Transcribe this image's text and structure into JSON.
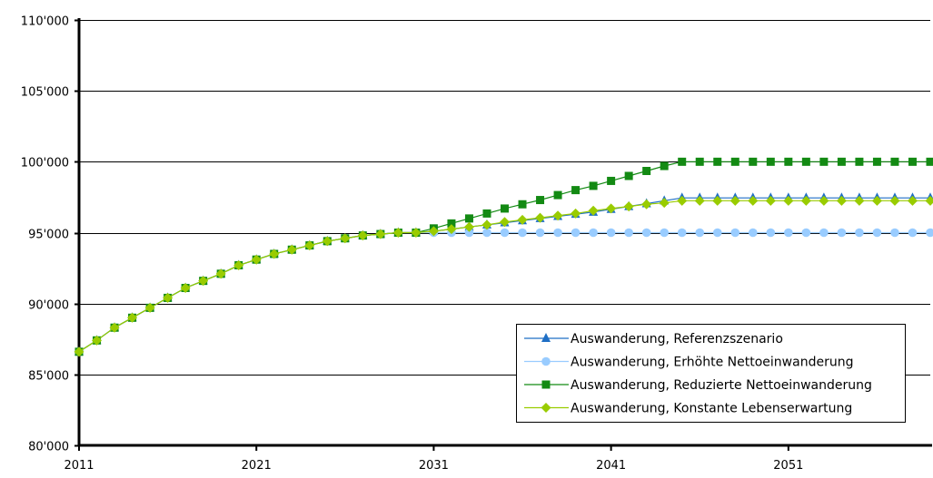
{
  "chart_data": {
    "type": "line",
    "title": "",
    "xlabel": "",
    "ylabel": "",
    "xlim": [
      2011,
      2059
    ],
    "ylim": [
      80000,
      110000
    ],
    "x_ticks": [
      2011,
      2021,
      2031,
      2041,
      2051
    ],
    "x_tick_labels": [
      "2011",
      "2021",
      "2031",
      "2041",
      "2051"
    ],
    "y_ticks": [
      80000,
      85000,
      90000,
      95000,
      100000,
      105000,
      110000
    ],
    "y_tick_labels": [
      "80'000",
      "85'000",
      "90'000",
      "95'000",
      "100'000",
      "105'000",
      "110'000"
    ],
    "grid": "horizontal",
    "legend_position": "bottom-right",
    "x": [
      2011,
      2012,
      2013,
      2014,
      2015,
      2016,
      2017,
      2018,
      2019,
      2020,
      2021,
      2022,
      2023,
      2024,
      2025,
      2026,
      2027,
      2028,
      2029,
      2030,
      2031,
      2032,
      2033,
      2034,
      2035,
      2036,
      2037,
      2038,
      2039,
      2040,
      2041,
      2042,
      2043,
      2044,
      2045,
      2046,
      2047,
      2048,
      2049,
      2050,
      2051,
      2052,
      2053,
      2054,
      2055,
      2056,
      2057,
      2058,
      2059
    ],
    "series": [
      {
        "name": "Auswanderung, Referenzszenario",
        "color": "#1F6FC5",
        "marker": "triangle",
        "values": [
          86600,
          87400,
          88300,
          89000,
          89700,
          90400,
          91100,
          91600,
          92100,
          92700,
          93100,
          93500,
          93800,
          94100,
          94400,
          94600,
          94800,
          94900,
          95000,
          95000,
          95100,
          95250,
          95400,
          95550,
          95700,
          95850,
          96000,
          96150,
          96300,
          96450,
          96650,
          96850,
          97050,
          97250,
          97450,
          97450,
          97450,
          97450,
          97450,
          97450,
          97450,
          97450,
          97450,
          97450,
          97450,
          97450,
          97450,
          97450,
          97450
        ]
      },
      {
        "name": "Auswanderung, Erhöhte Nettoeinwanderung",
        "color": "#99CCFF",
        "marker": "circle",
        "values": [
          86600,
          87400,
          88300,
          89000,
          89700,
          90400,
          91100,
          91600,
          92100,
          92700,
          93100,
          93500,
          93800,
          94100,
          94400,
          94600,
          94800,
          94900,
          95000,
          95000,
          95000,
          95000,
          95000,
          95000,
          95000,
          95000,
          95000,
          95000,
          95000,
          95000,
          95000,
          95000,
          95000,
          95000,
          95000,
          95000,
          95000,
          95000,
          95000,
          95000,
          95000,
          95000,
          95000,
          95000,
          95000,
          95000,
          95000,
          95000,
          95000
        ]
      },
      {
        "name": "Auswanderung, Reduzierte Nettoeinwanderung",
        "color": "#138A13",
        "marker": "square",
        "values": [
          86600,
          87400,
          88300,
          89000,
          89700,
          90400,
          91100,
          91600,
          92100,
          92700,
          93100,
          93500,
          93800,
          94100,
          94400,
          94600,
          94800,
          94900,
          95000,
          95000,
          95300,
          95650,
          96000,
          96350,
          96700,
          97000,
          97300,
          97650,
          98000,
          98300,
          98650,
          99000,
          99350,
          99700,
          100000,
          100000,
          100000,
          100000,
          100000,
          100000,
          100000,
          100000,
          100000,
          100000,
          100000,
          100000,
          100000,
          100000,
          100000
        ]
      },
      {
        "name": "Auswanderung, Konstante Lebenserwartung",
        "color": "#99CC00",
        "marker": "diamond",
        "values": [
          86600,
          87400,
          88300,
          89000,
          89700,
          90400,
          91100,
          91600,
          92100,
          92700,
          93100,
          93500,
          93800,
          94100,
          94400,
          94600,
          94800,
          94900,
          95000,
          95000,
          95100,
          95250,
          95400,
          95550,
          95750,
          95900,
          96050,
          96200,
          96350,
          96550,
          96700,
          96850,
          97000,
          97100,
          97250,
          97250,
          97250,
          97250,
          97250,
          97250,
          97250,
          97250,
          97250,
          97250,
          97250,
          97250,
          97250,
          97250,
          97250
        ]
      }
    ]
  }
}
